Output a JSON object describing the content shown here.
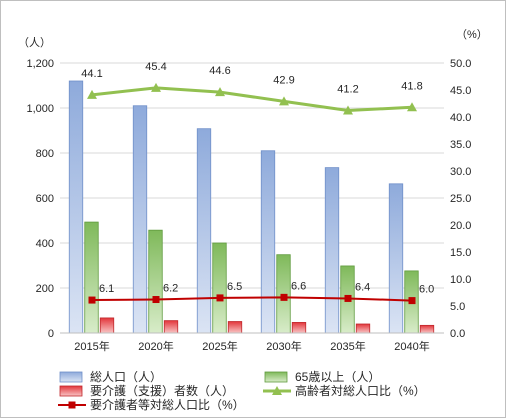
{
  "chart_data": {
    "type": "bar",
    "categories": [
      "2015年",
      "2020年",
      "2025年",
      "2030年",
      "2035年",
      "2040年"
    ],
    "left_axis": {
      "unit": "（人）",
      "ticks": [
        "0",
        "200",
        "400",
        "600",
        "800",
        "1,000",
        "1,200"
      ],
      "ylim": [
        0,
        1200
      ]
    },
    "right_axis": {
      "unit": "（%）",
      "ticks": [
        "0.0",
        "5.0",
        "10.0",
        "15.0",
        "20.0",
        "25.0",
        "30.0",
        "35.0",
        "40.0",
        "45.0",
        "50.0"
      ],
      "ylim": [
        0,
        50
      ]
    },
    "series": [
      {
        "name": "総人口（人）",
        "type": "bar",
        "axis": "left",
        "color": "#8eaadb",
        "values": [
          1120,
          1010,
          908,
          810,
          735,
          663
        ]
      },
      {
        "name": "65歳以上（人）",
        "type": "bar",
        "axis": "left",
        "color": "#8dc36a",
        "values": [
          493,
          457,
          400,
          348,
          298,
          276
        ]
      },
      {
        "name": "要介護（支援）者数（人）",
        "type": "bar",
        "axis": "left",
        "color": "#e8464a",
        "values": [
          67,
          55,
          51,
          47,
          40,
          34
        ]
      },
      {
        "name": "高齢者対総人口比（%）",
        "type": "line",
        "axis": "right",
        "color": "#92c050",
        "values": [
          44.1,
          45.4,
          44.6,
          42.9,
          41.2,
          41.8
        ],
        "labels": [
          "44.1",
          "45.4",
          "44.6",
          "42.9",
          "41.2",
          "41.8"
        ]
      },
      {
        "name": "要介護者等対総人口比（%）",
        "type": "line",
        "axis": "right",
        "color": "#c00000",
        "values": [
          6.1,
          6.2,
          6.5,
          6.6,
          6.4,
          6.0
        ],
        "labels": [
          "6.1",
          "6.2",
          "6.5",
          "6.6",
          "6.4",
          "6.0"
        ]
      }
    ],
    "gridlines": true,
    "legend_position": "bottom"
  }
}
